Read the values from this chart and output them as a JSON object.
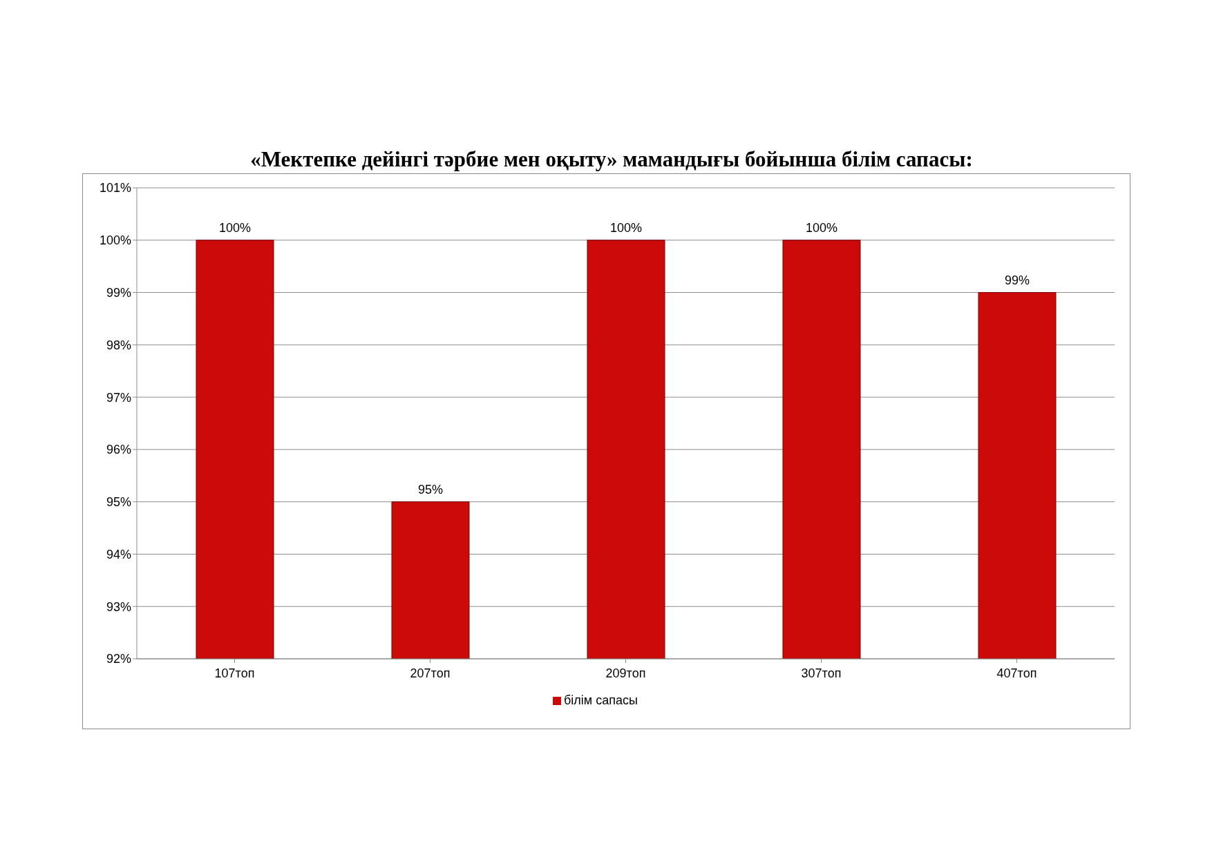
{
  "chart_data": {
    "type": "bar",
    "title": "«Мектепке дейінгі тәрбие мен оқыту» мамандығы бойынша білім сапасы:",
    "categories": [
      "107топ",
      "207топ",
      "209топ",
      "307топ",
      "407топ"
    ],
    "series": [
      {
        "name": "білім сапасы",
        "color": "#cc0a0a",
        "values": [
          100,
          95,
          100,
          100,
          99
        ],
        "value_labels": [
          "100%",
          "95%",
          "100%",
          "100%",
          "99%"
        ]
      }
    ],
    "ylim": [
      92,
      101
    ],
    "yticks": [
      {
        "value": 92,
        "label": "92%"
      },
      {
        "value": 93,
        "label": "93%"
      },
      {
        "value": 94,
        "label": "94%"
      },
      {
        "value": 95,
        "label": "95%"
      },
      {
        "value": 96,
        "label": "96%"
      },
      {
        "value": 97,
        "label": "97%"
      },
      {
        "value": 98,
        "label": "98%"
      },
      {
        "value": 99,
        "label": "99%"
      },
      {
        "value": 100,
        "label": "100%"
      },
      {
        "value": 101,
        "label": "101%"
      }
    ],
    "grid": "y",
    "legend": "bottom"
  }
}
